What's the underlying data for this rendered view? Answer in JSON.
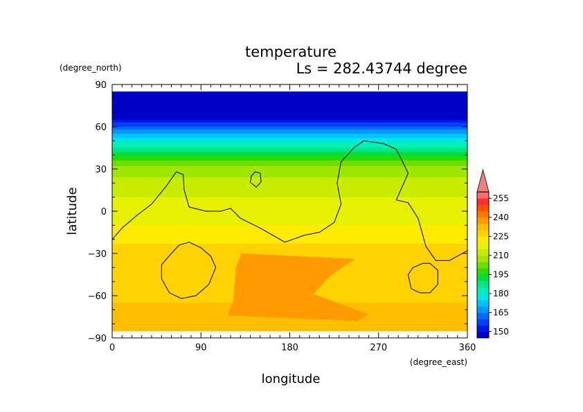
{
  "chart_data": {
    "type": "heatmap",
    "title": "temperature",
    "subtitle": "Ls = 282.43744 degree",
    "xlabel": "longitude",
    "ylabel": "latitude",
    "x_units": "(degree_east)",
    "y_units": "(degree_north)",
    "xlim": [
      0,
      360
    ],
    "ylim": [
      -90,
      90
    ],
    "x_ticks": [
      "0",
      "90",
      "180",
      "270",
      "360"
    ],
    "y_ticks": [
      "90",
      "60",
      "30",
      "0",
      "−30",
      "−60",
      "−90"
    ],
    "x_tick_values": [
      0,
      90,
      180,
      270,
      360
    ],
    "y_tick_values": [
      90,
      60,
      30,
      0,
      -30,
      -60,
      -90
    ],
    "colorbar": {
      "labels": [
        "255",
        "240",
        "225",
        "210",
        "195",
        "180",
        "165",
        "150"
      ],
      "label_values": [
        255,
        240,
        225,
        210,
        195,
        180,
        165,
        150
      ],
      "min": 145,
      "max": 260,
      "step": 5,
      "extend": "max",
      "colors": [
        "#0000c8",
        "#0018e6",
        "#0040f8",
        "#006cff",
        "#0098ff",
        "#00c4ff",
        "#00e6e6",
        "#00f0b4",
        "#00e682",
        "#00dc3c",
        "#28dc00",
        "#6edc00",
        "#a0e600",
        "#c8ec00",
        "#e6f000",
        "#ffeb00",
        "#ffd200",
        "#ffbe00",
        "#ff9b00",
        "#ff7800",
        "#ff5000",
        "#ff2d2d",
        "#ff6e6e",
        "#f08080"
      ]
    },
    "field_lat_range": [
      -85,
      85
    ],
    "zonal_profile": [
      {
        "lat": 85,
        "value": 148
      },
      {
        "lat": 65,
        "value": 150
      },
      {
        "lat": 60,
        "value": 160
      },
      {
        "lat": 55,
        "value": 170
      },
      {
        "lat": 50,
        "value": 178
      },
      {
        "lat": 45,
        "value": 185
      },
      {
        "lat": 40,
        "value": 194
      },
      {
        "lat": 35,
        "value": 202
      },
      {
        "lat": 30,
        "value": 207
      },
      {
        "lat": 20,
        "value": 212
      },
      {
        "lat": 10,
        "value": 215
      },
      {
        "lat": 0,
        "value": 218
      },
      {
        "lat": -10,
        "value": 220
      },
      {
        "lat": -20,
        "value": 224
      },
      {
        "lat": -30,
        "value": 227
      },
      {
        "lat": -45,
        "value": 228
      },
      {
        "lat": -60,
        "value": 228
      },
      {
        "lat": -70,
        "value": 232
      },
      {
        "lat": -85,
        "value": 232
      }
    ],
    "warm_region": {
      "lon_range": [
        110,
        260
      ],
      "lat_range": [
        -78,
        -30
      ],
      "value": 235
    },
    "topography_contours": [
      [
        [
          0,
          -20
        ],
        [
          10,
          -12
        ],
        [
          25,
          -3
        ],
        [
          40,
          5
        ],
        [
          55,
          18
        ],
        [
          65,
          28
        ],
        [
          72,
          26
        ],
        [
          73,
          15
        ],
        [
          78,
          3
        ],
        [
          95,
          0
        ],
        [
          110,
          0
        ],
        [
          120,
          2
        ],
        [
          130,
          -5
        ],
        [
          150,
          -12
        ],
        [
          175,
          -22
        ],
        [
          195,
          -17
        ],
        [
          210,
          -15
        ],
        [
          225,
          -8
        ],
        [
          232,
          5
        ],
        [
          228,
          20
        ],
        [
          232,
          35
        ],
        [
          245,
          45
        ],
        [
          255,
          50
        ],
        [
          275,
          48
        ],
        [
          288,
          44
        ],
        [
          300,
          27
        ],
        [
          288,
          8
        ],
        [
          300,
          6
        ],
        [
          310,
          -5
        ],
        [
          318,
          -25
        ],
        [
          328,
          -35
        ],
        [
          342,
          -35
        ],
        [
          360,
          -28
        ]
      ],
      [
        [
          140,
          20
        ],
        [
          141,
          25
        ],
        [
          145,
          28
        ],
        [
          150,
          27
        ],
        [
          151,
          21
        ],
        [
          146,
          17
        ],
        [
          141,
          20
        ]
      ],
      [
        [
          60,
          -30
        ],
        [
          68,
          -24
        ],
        [
          78,
          -22
        ],
        [
          90,
          -26
        ],
        [
          100,
          -32
        ],
        [
          105,
          -40
        ],
        [
          98,
          -52
        ],
        [
          85,
          -60
        ],
        [
          70,
          -62
        ],
        [
          58,
          -58
        ],
        [
          50,
          -48
        ],
        [
          50,
          -38
        ],
        [
          60,
          -30
        ]
      ],
      [
        [
          300,
          -45
        ],
        [
          305,
          -40
        ],
        [
          315,
          -37
        ],
        [
          322,
          -37
        ],
        [
          330,
          -42
        ],
        [
          330,
          -52
        ],
        [
          322,
          -58
        ],
        [
          312,
          -58
        ],
        [
          303,
          -55
        ],
        [
          300,
          -45
        ]
      ]
    ]
  }
}
